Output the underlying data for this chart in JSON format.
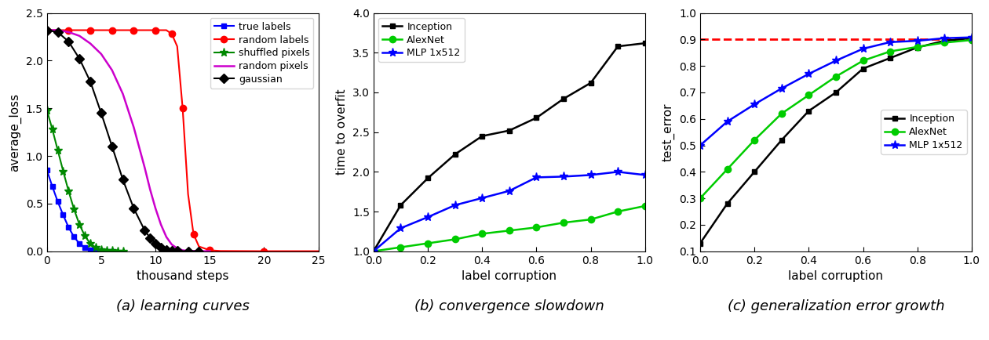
{
  "panel_a": {
    "title": "(a) learning curves",
    "xlabel": "thousand steps",
    "ylabel": "average_loss",
    "xlim": [
      0,
      25
    ],
    "ylim": [
      0.0,
      2.5
    ],
    "yticks": [
      0.0,
      0.5,
      1.0,
      1.5,
      2.0,
      2.5
    ],
    "xticks": [
      0,
      5,
      10,
      15,
      20,
      25
    ],
    "series": {
      "true_labels": {
        "label": "true labels",
        "color": "#0000ff",
        "marker": "s",
        "markersize": 5,
        "linewidth": 1.5,
        "x": [
          0,
          0.5,
          1.0,
          1.5,
          2.0,
          2.5,
          3.0,
          3.5,
          4.0,
          4.5,
          5.0,
          5.5,
          6.0
        ],
        "y": [
          0.85,
          0.68,
          0.52,
          0.38,
          0.25,
          0.15,
          0.08,
          0.04,
          0.015,
          0.005,
          0.002,
          0.001,
          0.001
        ],
        "markevery": 1
      },
      "random_labels": {
        "label": "random labels",
        "color": "#ff0000",
        "marker": "o",
        "markersize": 6,
        "linewidth": 1.5,
        "x": [
          0,
          1,
          2,
          3,
          4,
          5,
          6,
          7,
          8,
          9,
          10,
          11,
          11.5,
          12.0,
          12.5,
          13.0,
          13.5,
          14.0,
          15.0,
          16.0,
          20.0,
          25.0
        ],
        "y": [
          2.32,
          2.32,
          2.32,
          2.32,
          2.32,
          2.32,
          2.32,
          2.32,
          2.32,
          2.32,
          2.32,
          2.32,
          2.28,
          2.15,
          1.5,
          0.6,
          0.18,
          0.05,
          0.01,
          0.003,
          0.001,
          0.001
        ],
        "markevery": 2
      },
      "shuffled_pixels": {
        "label": "shuffled pixels",
        "color": "#008800",
        "marker": "*",
        "markersize": 8,
        "linewidth": 1.5,
        "x": [
          0,
          0.5,
          1.0,
          1.5,
          2.0,
          2.5,
          3.0,
          3.5,
          4.0,
          4.5,
          5.0,
          5.5,
          6.0,
          6.5,
          7.0
        ],
        "y": [
          1.48,
          1.28,
          1.06,
          0.84,
          0.63,
          0.44,
          0.28,
          0.16,
          0.08,
          0.04,
          0.015,
          0.005,
          0.002,
          0.001,
          0.001
        ],
        "markevery": 1
      },
      "random_pixels": {
        "label": "random pixels",
        "color": "#cc00cc",
        "marker": null,
        "markersize": 0,
        "linewidth": 1.8,
        "x": [
          0,
          0.5,
          1,
          2,
          3,
          4,
          5,
          6,
          7,
          8,
          9,
          9.5,
          10.0,
          10.5,
          11.0,
          11.5,
          12.0,
          12.5,
          13.0,
          14.0,
          15.0
        ],
        "y": [
          2.32,
          2.32,
          2.32,
          2.3,
          2.26,
          2.18,
          2.07,
          1.9,
          1.65,
          1.3,
          0.88,
          0.65,
          0.45,
          0.28,
          0.15,
          0.07,
          0.03,
          0.01,
          0.004,
          0.001,
          0.001
        ],
        "markevery": 1
      },
      "gaussian": {
        "label": "gaussian",
        "color": "#000000",
        "marker": "D",
        "markersize": 6,
        "linewidth": 1.5,
        "x": [
          0,
          1,
          2,
          3,
          4,
          5,
          6,
          7,
          8,
          9,
          9.5,
          10.0,
          10.5,
          11.0,
          11.5,
          12.0,
          13.0,
          14.0
        ],
        "y": [
          2.32,
          2.3,
          2.2,
          2.02,
          1.78,
          1.45,
          1.1,
          0.75,
          0.45,
          0.22,
          0.14,
          0.08,
          0.04,
          0.018,
          0.008,
          0.003,
          0.001,
          0.001
        ],
        "markevery": 1
      }
    }
  },
  "panel_b": {
    "title": "(b) convergence slowdown",
    "xlabel": "label corruption",
    "ylabel": "time to overfit",
    "xlim": [
      0.0,
      1.0
    ],
    "ylim": [
      1.0,
      4.0
    ],
    "yticks": [
      1.0,
      1.5,
      2.0,
      2.5,
      3.0,
      3.5,
      4.0
    ],
    "xticks": [
      0.0,
      0.2,
      0.4,
      0.6,
      0.8,
      1.0
    ],
    "series": {
      "inception": {
        "label": "Inception",
        "color": "#000000",
        "marker": "s",
        "markersize": 5,
        "linewidth": 1.8,
        "x": [
          0.0,
          0.1,
          0.2,
          0.3,
          0.4,
          0.5,
          0.6,
          0.7,
          0.8,
          0.9,
          1.0
        ],
        "y": [
          1.0,
          1.58,
          1.92,
          2.22,
          2.45,
          2.52,
          2.68,
          2.92,
          3.12,
          3.58,
          3.62
        ]
      },
      "alexnet": {
        "label": "AlexNet",
        "color": "#00cc00",
        "marker": "o",
        "markersize": 6,
        "linewidth": 1.8,
        "x": [
          0.0,
          0.1,
          0.2,
          0.3,
          0.4,
          0.5,
          0.6,
          0.7,
          0.8,
          0.9,
          1.0
        ],
        "y": [
          1.0,
          1.05,
          1.1,
          1.15,
          1.22,
          1.26,
          1.3,
          1.36,
          1.4,
          1.5,
          1.57
        ]
      },
      "mlp": {
        "label": "MLP 1x512",
        "color": "#0000ff",
        "marker": "*",
        "markersize": 8,
        "linewidth": 1.8,
        "x": [
          0.0,
          0.1,
          0.2,
          0.3,
          0.4,
          0.5,
          0.6,
          0.7,
          0.8,
          0.9,
          1.0
        ],
        "y": [
          1.0,
          1.29,
          1.43,
          1.58,
          1.67,
          1.76,
          1.93,
          1.94,
          1.96,
          2.0,
          1.96
        ]
      }
    }
  },
  "panel_c": {
    "title": "(c) generalization error growth",
    "xlabel": "label corruption",
    "ylabel": "test_error",
    "xlim": [
      0.0,
      1.0
    ],
    "ylim": [
      0.1,
      1.0
    ],
    "yticks": [
      0.1,
      0.2,
      0.3,
      0.4,
      0.5,
      0.6,
      0.7,
      0.8,
      0.9,
      1.0
    ],
    "xticks": [
      0.0,
      0.2,
      0.4,
      0.6,
      0.8,
      1.0
    ],
    "dashed_line_y": 0.9,
    "dashed_line_color": "#ff0000",
    "series": {
      "inception": {
        "label": "Inception",
        "color": "#000000",
        "marker": "s",
        "markersize": 5,
        "linewidth": 1.8,
        "x": [
          0.0,
          0.1,
          0.2,
          0.3,
          0.4,
          0.5,
          0.6,
          0.7,
          0.8,
          0.9,
          1.0
        ],
        "y": [
          0.13,
          0.28,
          0.4,
          0.52,
          0.63,
          0.7,
          0.79,
          0.83,
          0.87,
          0.895,
          0.905
        ]
      },
      "alexnet": {
        "label": "AlexNet",
        "color": "#00cc00",
        "marker": "o",
        "markersize": 6,
        "linewidth": 1.8,
        "x": [
          0.0,
          0.1,
          0.2,
          0.3,
          0.4,
          0.5,
          0.6,
          0.7,
          0.8,
          0.9,
          1.0
        ],
        "y": [
          0.3,
          0.41,
          0.52,
          0.62,
          0.69,
          0.76,
          0.82,
          0.855,
          0.872,
          0.888,
          0.898
        ]
      },
      "mlp": {
        "label": "MLP 1x512",
        "color": "#0000ff",
        "marker": "*",
        "markersize": 8,
        "linewidth": 1.8,
        "x": [
          0.0,
          0.1,
          0.2,
          0.3,
          0.4,
          0.5,
          0.6,
          0.7,
          0.8,
          0.9,
          1.0
        ],
        "y": [
          0.5,
          0.59,
          0.655,
          0.715,
          0.77,
          0.82,
          0.865,
          0.89,
          0.895,
          0.905,
          0.908
        ]
      }
    }
  },
  "font_size_axis_label": 11,
  "font_size_tick": 10,
  "font_size_legend": 9,
  "font_size_caption": 13
}
